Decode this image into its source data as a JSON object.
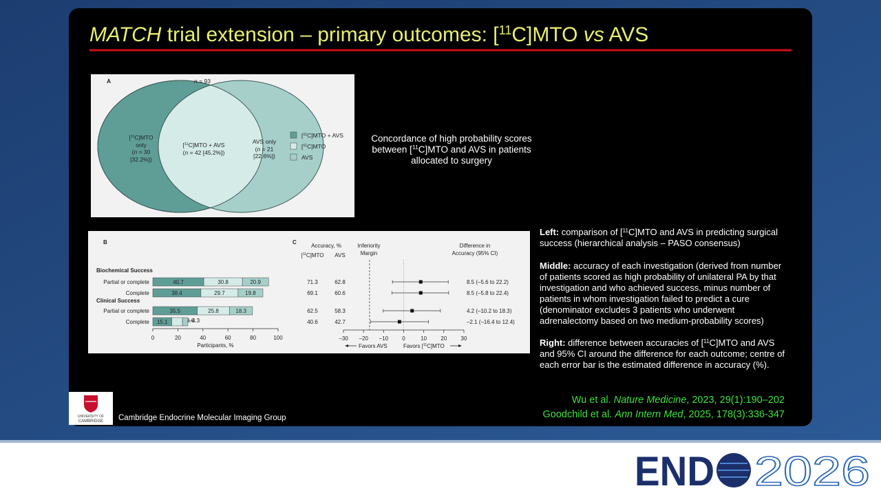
{
  "title": [
    "MATCH",
    " trial extension – primary outcomes: [",
    "11",
    "C]MTO ",
    "vs",
    " AVS"
  ],
  "caption": [
    "Concordance of high probability scores",
    "between [",
    "11",
    "C]MTO and AVS in patients",
    "allocated to surgery"
  ],
  "notes": {
    "left": [
      "Left:",
      " comparison of [",
      "11",
      "C]MTO and AVS in predicting surgical",
      "success (hierarchical analysis – PASO consensus)"
    ],
    "middle": [
      "Middle:",
      " accuracy of each investigation (derived from number",
      "of patients scored as high probability of unilateral PA by that",
      "investigation and who achieved success, minus number of",
      "patients in whom investigation failed to predict a cure",
      "(denominator excludes 3 patients who underwent",
      "adrenalectomy based on two medium-probability scores)"
    ],
    "right": [
      "Right:",
      " difference between accuracies of [",
      "11",
      "C]MTO and AVS",
      "and 95% CI around the difference for each outcome; centre of",
      "each error bar is the estimated difference in accuracy (%)."
    ]
  },
  "references": [
    [
      "Wu et al. ",
      "Nature Medicine",
      ", 2023, 29(1):190–202"
    ],
    [
      "Goodchild et al. ",
      "Ann Intern Med",
      ", 2025, 178(3):336-347"
    ]
  ],
  "footer": {
    "group": "Cambridge Endocrine Molecular Imaging Group",
    "university": [
      "UNIVERSITY OF",
      "CAMBRIDGE"
    ],
    "logo": [
      "END",
      "2026"
    ]
  },
  "venn": {
    "panel": "A",
    "total": [
      "n",
      " = 93"
    ],
    "left": [
      "[",
      "11",
      "C]MTO",
      "only",
      "(",
      "n",
      " = 30",
      "[32.2%])"
    ],
    "center": [
      "[",
      "11",
      "C]MTO + AVS",
      "(",
      "n",
      " = 42 [45.2%])"
    ],
    "right": [
      "AVS only",
      "(",
      "n",
      " = 21",
      "[22.6%])"
    ],
    "legend": [
      {
        "name": [
          "[",
          "11",
          "C]MTO + AVS"
        ],
        "color": "#5f9e97"
      },
      {
        "name": [
          "[",
          "11",
          "C]MTO"
        ],
        "color": "#d5ebe8"
      },
      {
        "name": [
          "AVS"
        ],
        "color": "#a6cfca"
      }
    ]
  },
  "chart_data": [
    {
      "type": "bar",
      "orientation": "horizontal",
      "stacked": true,
      "panel": "B",
      "groups": [
        "Biochemical Success",
        "Clinical Success"
      ],
      "categories": [
        "Partial or complete",
        "Complete",
        "Partial or complete",
        "Complete"
      ],
      "series": [
        {
          "color": "#5f9e97",
          "values": [
            40.7,
            38.4,
            35.5,
            15.1
          ]
        },
        {
          "color": "#d5ebe8",
          "values": [
            30.8,
            29.7,
            25.8,
            8.6
          ]
        },
        {
          "color": "#a6cfca",
          "values": [
            20.9,
            19.8,
            18.3,
            4.3
          ]
        }
      ],
      "xlabel": "Participants, %",
      "xlim": [
        0,
        100
      ],
      "xticks": [
        0,
        20,
        40,
        60,
        80,
        100
      ]
    },
    {
      "type": "forest",
      "panel": "C",
      "accuracy_header": "Accuracy, %",
      "columns": [
        [
          "[",
          "11",
          "C]MTO"
        ],
        [
          "AVS"
        ]
      ],
      "accuracy": [
        [
          71.3,
          62.8
        ],
        [
          69.1,
          60.6
        ],
        [
          62.5,
          58.3
        ],
        [
          40.6,
          42.7
        ]
      ],
      "margin_label": [
        "Inferiority",
        "Margin"
      ],
      "inferiority_margin": -17,
      "ci_header": [
        "Difference in",
        "Accuracy (95% CI)"
      ],
      "estimates": [
        8.5,
        8.5,
        4.2,
        -2.1
      ],
      "lower": [
        -5.6,
        -5.8,
        -10.2,
        -16.4
      ],
      "upper": [
        22.2,
        22.4,
        18.3,
        12.4
      ],
      "value_labels": [
        "8.5 (–5.6 to 22.2)",
        "8.5 (–5.8 to 22.4)",
        "4.2 (–10.2 to 18.3)",
        "–2.1 (–16.4 to 12.4)"
      ],
      "xlim": [
        -30,
        30
      ],
      "xticks": [
        {
          "value": -30,
          "label": "−30"
        },
        {
          "value": -20,
          "label": "−20"
        },
        {
          "value": -10,
          "label": "−10"
        },
        0,
        10,
        20,
        30
      ],
      "favors_left": "Favors AVS",
      "favors_right": [
        "Favors [",
        "11",
        "C]MTO"
      ]
    }
  ]
}
